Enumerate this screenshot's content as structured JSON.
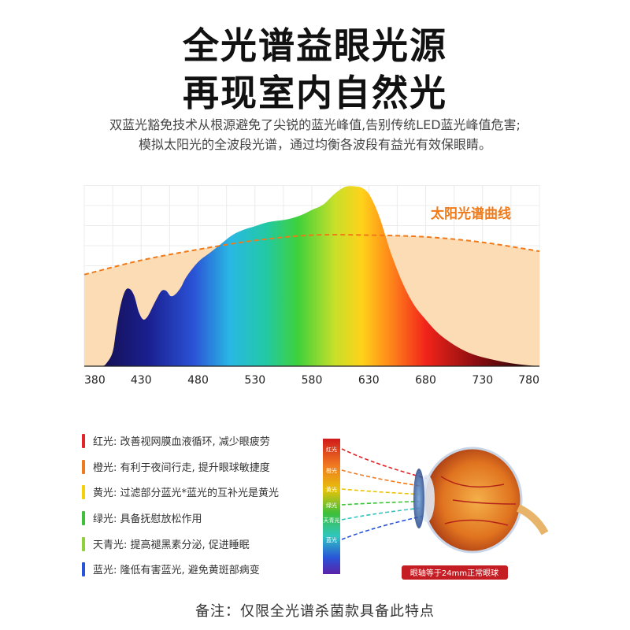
{
  "headline": {
    "line1": "全光谱益眼光源",
    "line2": "再现室内自然光"
  },
  "intro": "双蓝光豁免技术从根源避免了尖锐的蓝光峰值,告别传统LED蓝光峰值危害; 模拟太阳光的全波段光谱，通过均衡各波段有益光有效保眼睛。",
  "chart_data": {
    "type": "area",
    "x_ticks": [
      380,
      430,
      480,
      530,
      580,
      630,
      680,
      730,
      780
    ],
    "xlim": [
      380,
      780
    ],
    "ylim": [
      0,
      1
    ],
    "grid": true,
    "series": [
      {
        "name": "太阳光谱曲线",
        "style": "dashed",
        "color": "#f07a1a",
        "fill": "#fbdcb4",
        "x": [
          380,
          430,
          480,
          530,
          580,
          630,
          680,
          730,
          780
        ],
        "y": [
          0.51,
          0.59,
          0.65,
          0.7,
          0.73,
          0.73,
          0.72,
          0.69,
          0.64
        ]
      },
      {
        "name": "",
        "style": "spectrum-fill",
        "x": [
          380,
          395,
          400,
          405,
          408,
          412,
          416,
          420,
          424,
          428,
          432,
          436,
          440,
          444,
          448,
          452,
          456,
          460,
          465,
          470,
          480,
          490,
          500,
          510,
          520,
          530,
          540,
          550,
          560,
          570,
          580,
          590,
          600,
          610,
          620,
          625,
          630,
          635,
          640,
          645,
          650,
          660,
          670,
          680,
          690,
          700,
          710,
          720,
          730,
          740,
          750,
          760,
          770,
          780
        ],
        "y": [
          0,
          0,
          0.02,
          0.08,
          0.2,
          0.34,
          0.42,
          0.43,
          0.39,
          0.3,
          0.26,
          0.28,
          0.33,
          0.38,
          0.42,
          0.42,
          0.39,
          0.4,
          0.44,
          0.5,
          0.58,
          0.63,
          0.68,
          0.73,
          0.76,
          0.78,
          0.8,
          0.81,
          0.82,
          0.84,
          0.87,
          0.9,
          0.96,
          1.0,
          1.0,
          0.99,
          0.96,
          0.9,
          0.82,
          0.72,
          0.62,
          0.46,
          0.34,
          0.26,
          0.19,
          0.14,
          0.1,
          0.07,
          0.05,
          0.035,
          0.022,
          0.012,
          0.005,
          0
        ]
      }
    ],
    "annotation": "太阳光谱曲线"
  },
  "benefits": [
    {
      "name": "red",
      "color": "#e0262b",
      "text": "红光: 改善视网膜血液循环, 减少眼疲劳"
    },
    {
      "name": "orange",
      "color": "#f07a20",
      "text": "橙光: 有利于夜间行走, 提升眼球敏捷度"
    },
    {
      "name": "yellow",
      "color": "#f5d10a",
      "text": "黄光: 过滤部分蓝光*蓝光的互补光是黄光"
    },
    {
      "name": "green",
      "color": "#3fbf3a",
      "text": "绿光: 具备抚慰放松作用"
    },
    {
      "name": "cyan",
      "color": "#8fd13a",
      "text": "天青光: 提高褪黑素分泌, 促进睡眠"
    },
    {
      "name": "blue",
      "color": "#2a54d8",
      "text": "蓝光: 隆低有害蓝光, 避免黄斑部病变"
    }
  ],
  "eye": {
    "band_labels": [
      {
        "label": "红光",
        "color": "#e0262b"
      },
      {
        "label": "橙光",
        "color": "#f07a20"
      },
      {
        "label": "黄光",
        "color": "#e6c20a"
      },
      {
        "label": "绿光",
        "color": "#3fbf3a"
      },
      {
        "label": "天青光",
        "color": "#2fc6c0"
      },
      {
        "label": "蓝光",
        "color": "#2a54d8"
      }
    ],
    "caption": "眼轴等于24mm正常眼球"
  },
  "note": "备注：仅限全光谱杀菌款具备此特点",
  "colors": {
    "accent": "#f07a1a",
    "sun_fill": "#fbdcb4"
  }
}
